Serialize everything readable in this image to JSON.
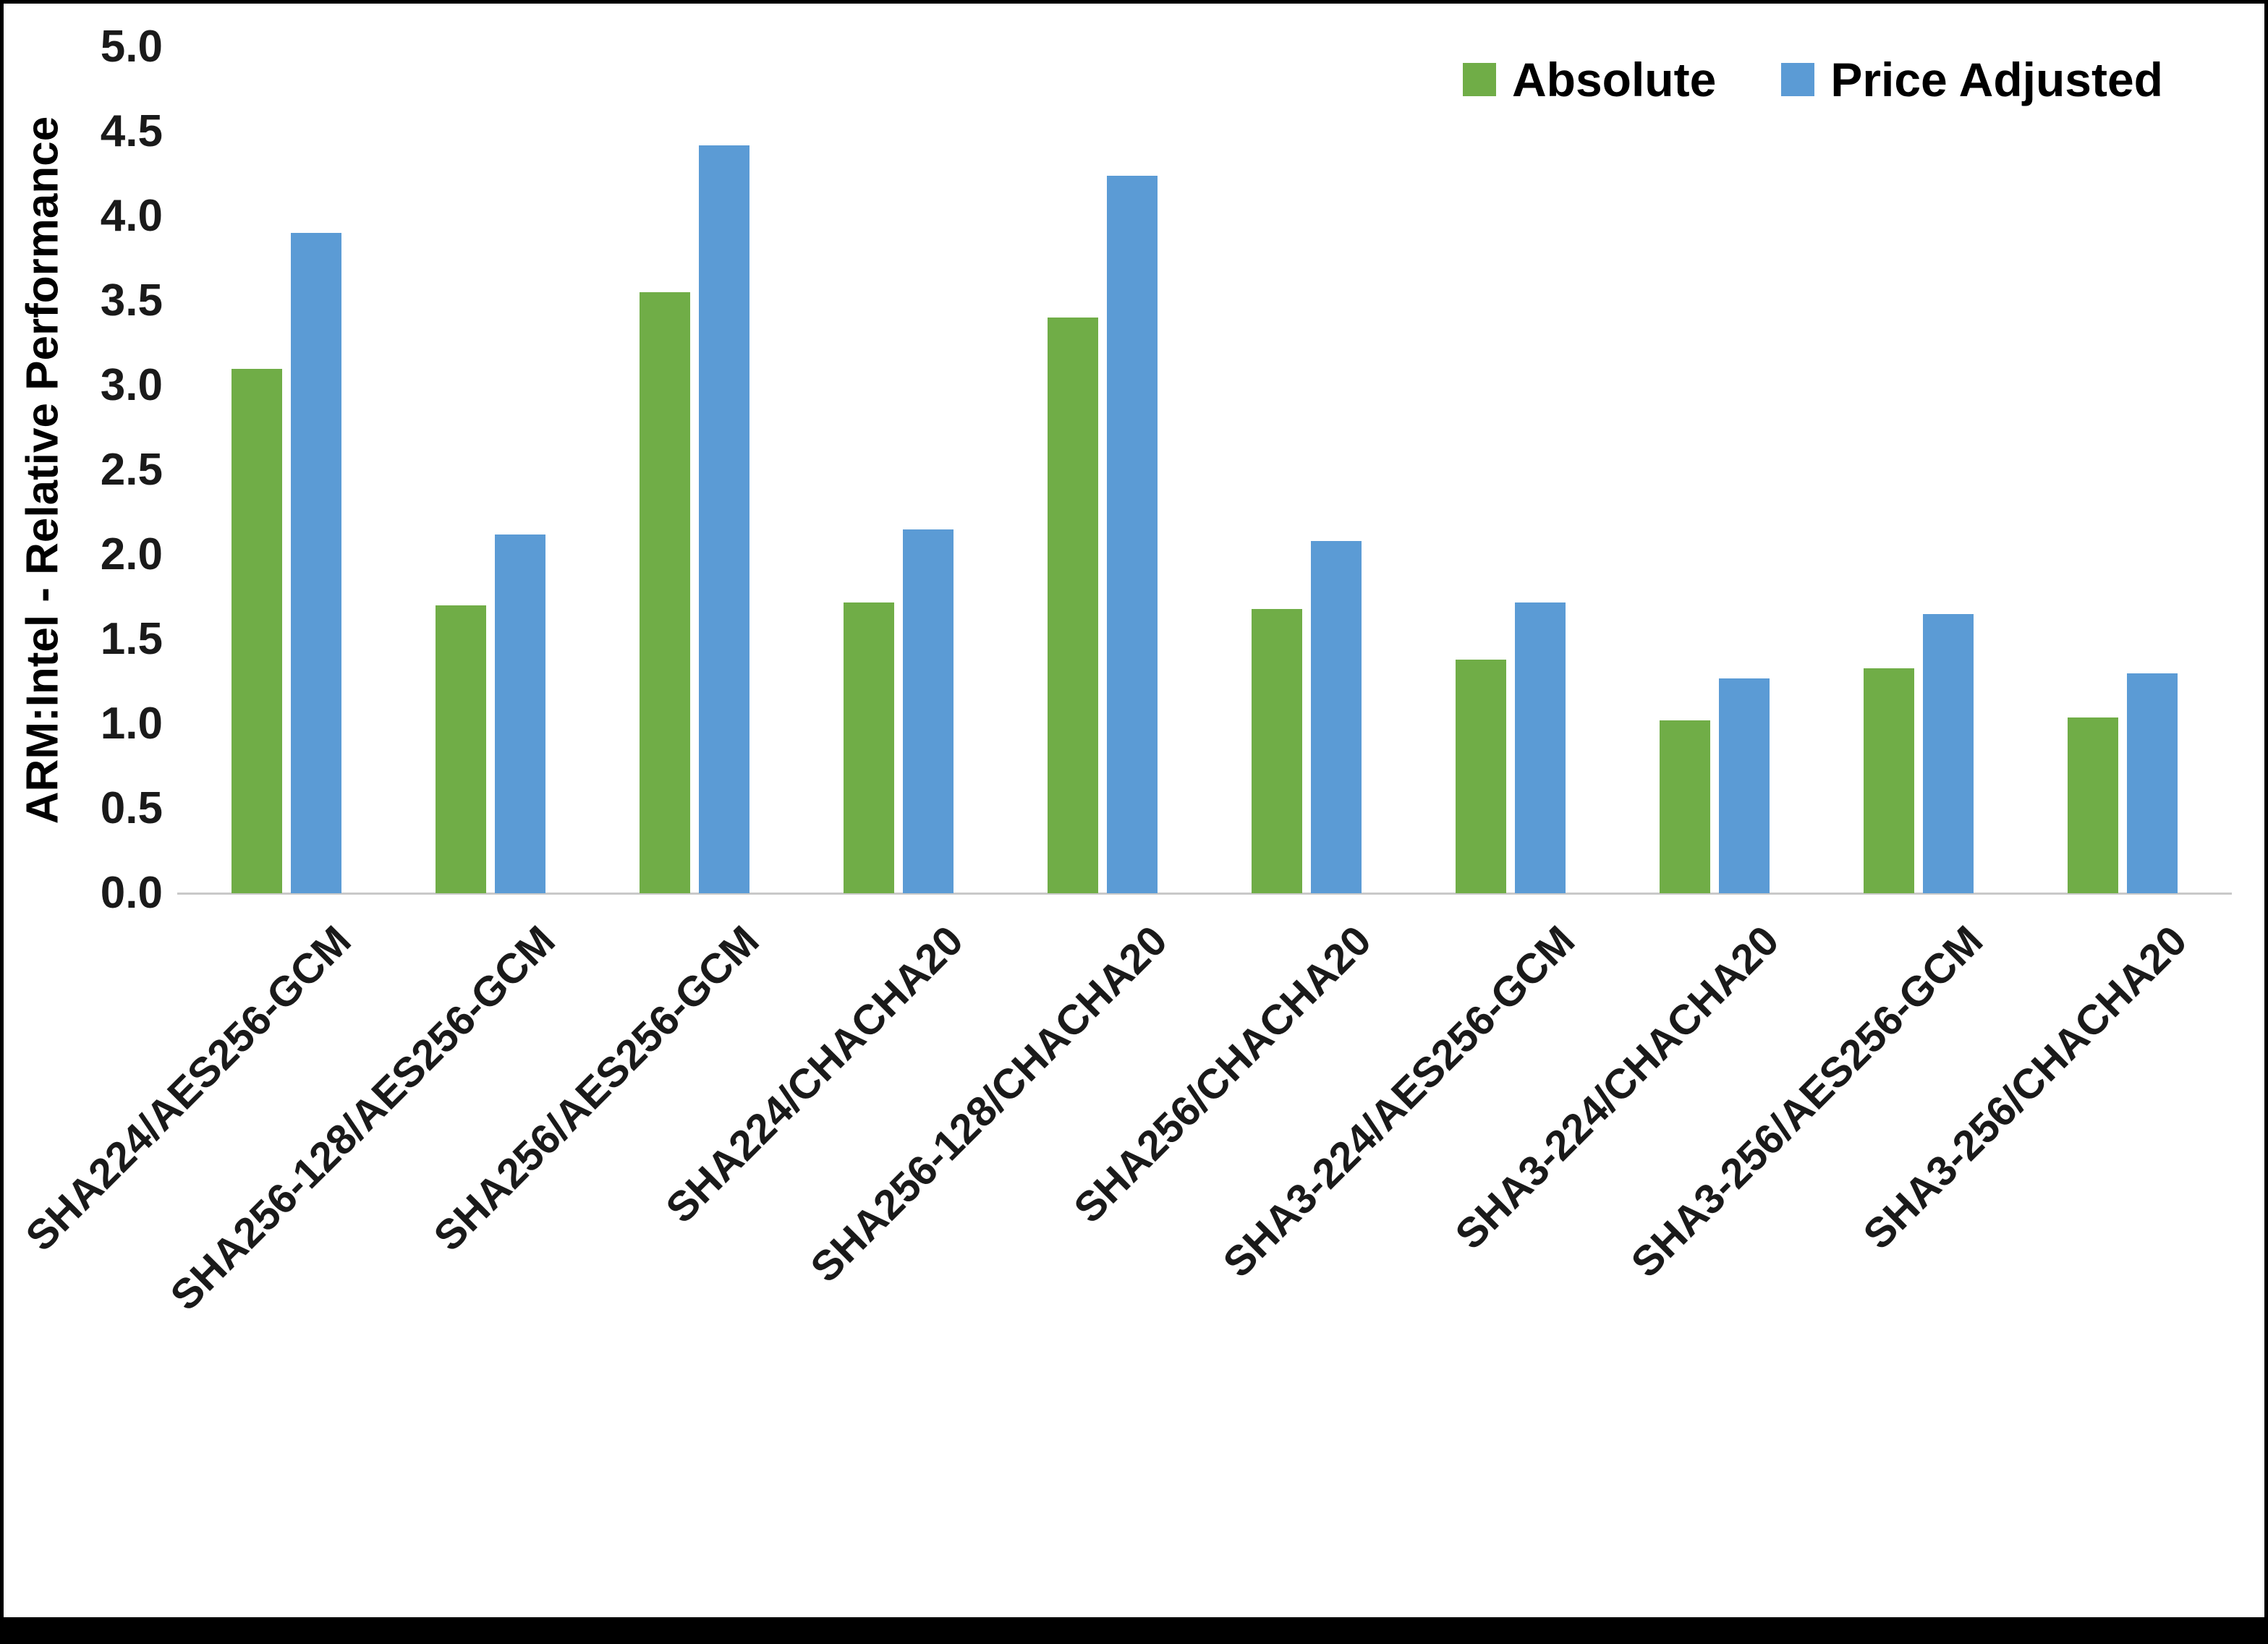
{
  "chart_data": {
    "type": "bar",
    "title": "",
    "ylabel": "ARM:Intel - Relative Performance",
    "xlabel": "",
    "ylim": [
      0,
      5
    ],
    "ytick_step": 0.5,
    "yticks": [
      "0.0",
      "0.5",
      "1.0",
      "1.5",
      "2.0",
      "2.5",
      "3.0",
      "3.5",
      "4.0",
      "4.5",
      "5.0"
    ],
    "grid": false,
    "legend_position": "top-right",
    "categories": [
      "SHA224/AES256-GCM",
      "SHA256-128/AES256-GCM",
      "SHA256/AES256-GCM",
      "SHA224/CHACHA20",
      "SHA256-128/CHACHA20",
      "SHA256/CHACHA20",
      "SHA3-224/AES256-GCM",
      "SHA3-224/CHACHA20",
      "SHA3-256/AES256-GCM",
      "SHA3-256/CHACHA20"
    ],
    "series": [
      {
        "name": "Absolute",
        "color": "#70AD47",
        "values": [
          3.1,
          1.7,
          3.55,
          1.72,
          3.4,
          1.68,
          1.38,
          1.02,
          1.33,
          1.04
        ]
      },
      {
        "name": "Price Adjusted",
        "color": "#5B9BD5",
        "values": [
          3.9,
          2.12,
          4.42,
          2.15,
          4.24,
          2.08,
          1.72,
          1.27,
          1.65,
          1.3
        ]
      }
    ]
  }
}
